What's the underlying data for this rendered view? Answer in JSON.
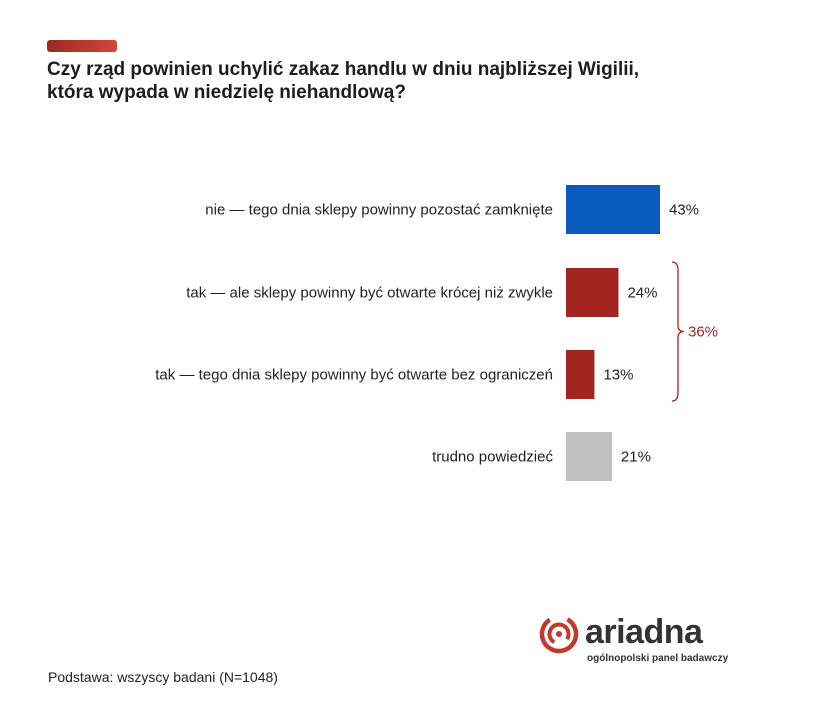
{
  "title_lines": [
    "Czy rząd powinien uchylić zakaz handlu w dniu najbliższej Wigilii,",
    "która wypada w niedzielę niehandlową?"
  ],
  "footnote": "Podstawa: wszyscy badani (N=1048)",
  "logo": {
    "word": "ariadna",
    "tagline": "ogólnopolski panel badawczy",
    "icon": "ariadna-spiral-logo-icon"
  },
  "colors": {
    "accent": "#c0392b",
    "blue": "#0a5bbf",
    "red": "#a3251f",
    "gray": "#c0c0c0",
    "bracket": "#a3251f"
  },
  "chart_data": {
    "type": "bar",
    "orientation": "horizontal",
    "categories": [
      "nie — tego dnia sklepy powinny pozostać zamknięte",
      "tak — ale sklepy powinny być otwarte krócej niż zwykle",
      "tak — tego dnia sklepy powinny być otwarte bez ograniczeń",
      "trudno powiedzieć"
    ],
    "values": [
      43,
      24,
      13,
      21
    ],
    "value_labels": [
      "43%",
      "24%",
      "13%",
      "21%"
    ],
    "bar_colors": [
      "#0a5bbf",
      "#a3251f",
      "#a3251f",
      "#c0c0c0"
    ],
    "unit": "%",
    "xlim": [
      0,
      100
    ],
    "grid": false,
    "legend": "none",
    "group_total": {
      "categories": [
        1,
        2
      ],
      "value": 36,
      "label": "36%"
    }
  }
}
